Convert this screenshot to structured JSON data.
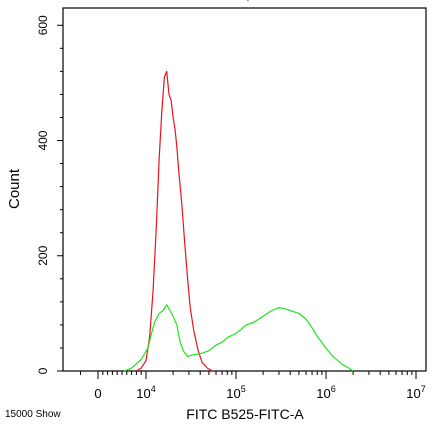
{
  "chart_data": {
    "type": "line",
    "title": "",
    "xlabel": "FITC B525-FITC-A",
    "ylabel": "Count",
    "x_scale": "biexponential",
    "xlim": [
      -2000,
      10000000
    ],
    "ylim": [
      0,
      630
    ],
    "grid": false,
    "footer_text": "15000 Show",
    "top_tick_label": "'",
    "y_ticks": [
      {
        "value": 0,
        "label": "0"
      },
      {
        "value": 200,
        "label": "200"
      },
      {
        "value": 400,
        "label": "400"
      },
      {
        "value": 600,
        "label": "600"
      }
    ],
    "x_ticks": [
      {
        "value": 0,
        "base": "0",
        "exp": ""
      },
      {
        "value": 10000,
        "base": "10",
        "exp": "4"
      },
      {
        "value": 100000,
        "base": "10",
        "exp": "5"
      },
      {
        "value": 1000000,
        "base": "10",
        "exp": "6"
      },
      {
        "value": 10000000,
        "base": "10",
        "exp": "7"
      }
    ],
    "series": [
      {
        "color": "#e8141b",
        "points": [
          [
            8000,
            0
          ],
          [
            9000,
            5
          ],
          [
            10000,
            18
          ],
          [
            11000,
            60
          ],
          [
            12000,
            140
          ],
          [
            13000,
            250
          ],
          [
            14000,
            370
          ],
          [
            15000,
            450
          ],
          [
            16000,
            510
          ],
          [
            17000,
            520
          ],
          [
            18000,
            480
          ],
          [
            19000,
            470
          ],
          [
            20000,
            440
          ],
          [
            21000,
            420
          ],
          [
            22000,
            390
          ],
          [
            23000,
            350
          ],
          [
            25000,
            290
          ],
          [
            27000,
            220
          ],
          [
            29000,
            160
          ],
          [
            31000,
            110
          ],
          [
            34000,
            70
          ],
          [
            38000,
            35
          ],
          [
            42000,
            15
          ],
          [
            48000,
            5
          ],
          [
            55000,
            0
          ]
        ]
      },
      {
        "color": "#1ee61e",
        "points": [
          [
            5500,
            0
          ],
          [
            7000,
            5
          ],
          [
            9000,
            20
          ],
          [
            10500,
            40
          ],
          [
            11500,
            65
          ],
          [
            12500,
            85
          ],
          [
            14000,
            100
          ],
          [
            15500,
            105
          ],
          [
            17000,
            115
          ],
          [
            18500,
            105
          ],
          [
            20000,
            95
          ],
          [
            22000,
            80
          ],
          [
            24000,
            50
          ],
          [
            26000,
            35
          ],
          [
            29000,
            25
          ],
          [
            33000,
            28
          ],
          [
            40000,
            30
          ],
          [
            50000,
            35
          ],
          [
            60000,
            45
          ],
          [
            70000,
            50
          ],
          [
            80000,
            58
          ],
          [
            100000,
            65
          ],
          [
            130000,
            80
          ],
          [
            160000,
            85
          ],
          [
            200000,
            95
          ],
          [
            250000,
            105
          ],
          [
            300000,
            110
          ],
          [
            350000,
            108
          ],
          [
            400000,
            105
          ],
          [
            500000,
            100
          ],
          [
            600000,
            90
          ],
          [
            700000,
            75
          ],
          [
            800000,
            60
          ],
          [
            1000000,
            40
          ],
          [
            1200000,
            25
          ],
          [
            1500000,
            12
          ],
          [
            1800000,
            5
          ],
          [
            2000000,
            0
          ]
        ]
      }
    ]
  }
}
